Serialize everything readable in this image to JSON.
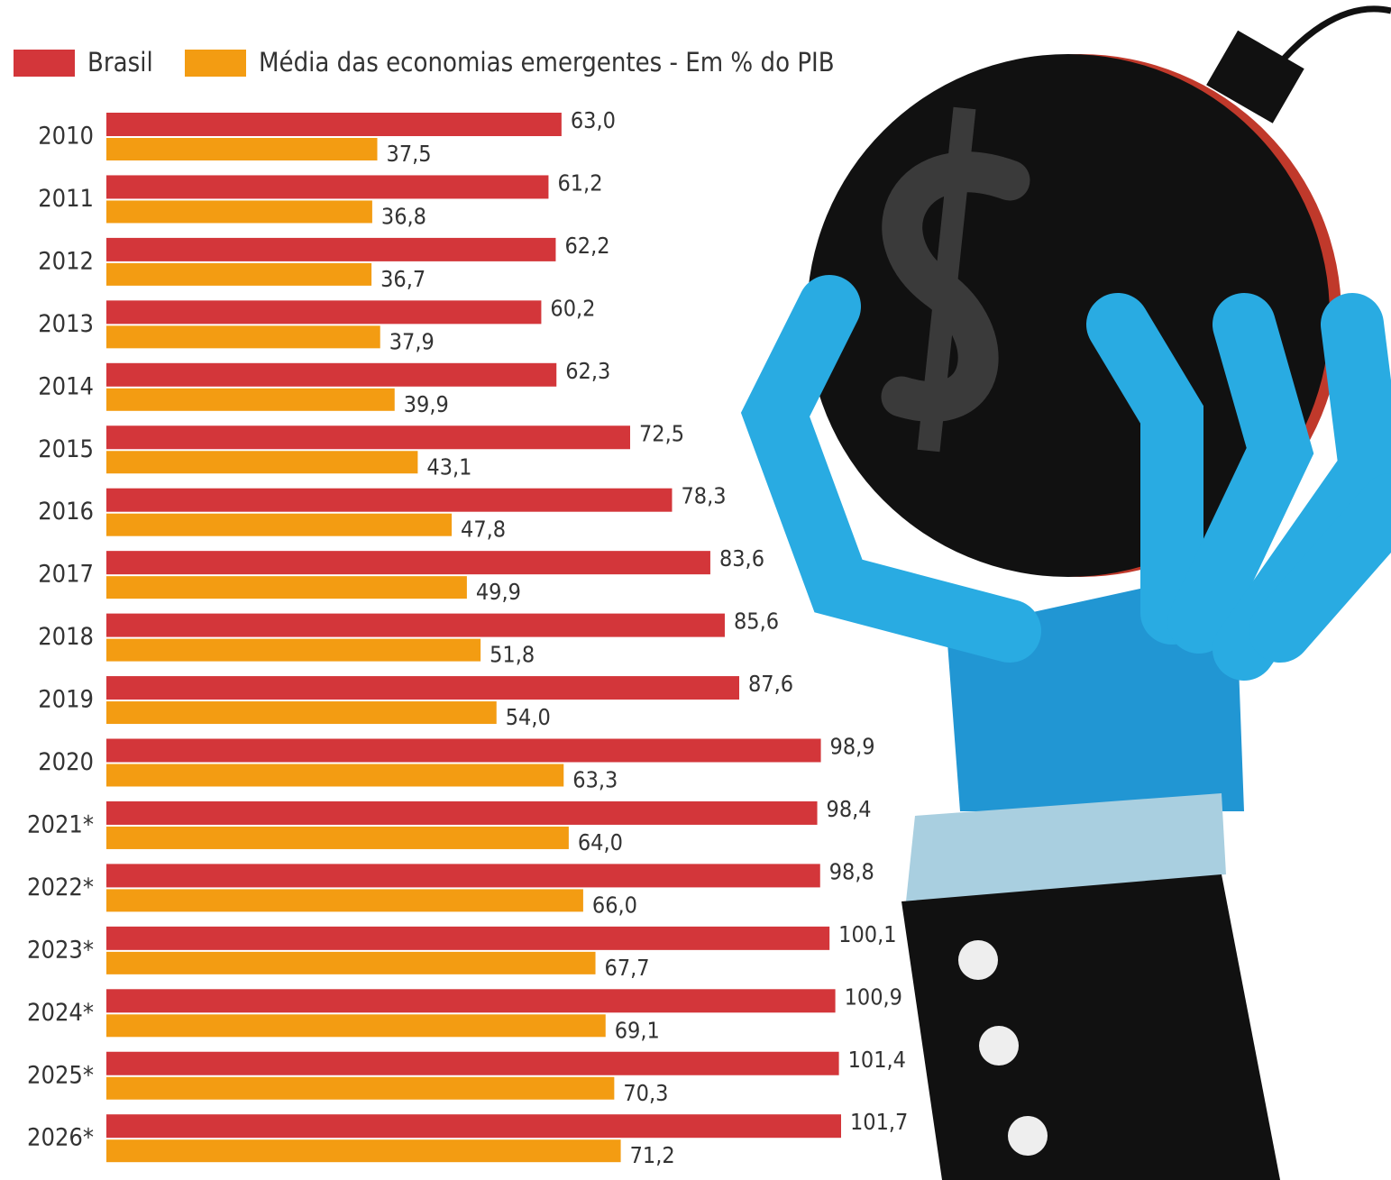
{
  "chart_data": {
    "type": "bar",
    "orientation": "horizontal",
    "categories": [
      "2010",
      "2011",
      "2012",
      "2013",
      "2014",
      "2015",
      "2016",
      "2017",
      "2018",
      "2019",
      "2020",
      "2021*",
      "2022*",
      "2023*",
      "2024*",
      "2025*",
      "2026*"
    ],
    "series": [
      {
        "name": "Brasil",
        "color": "#d3363a",
        "values": [
          63.0,
          61.2,
          62.2,
          60.2,
          62.3,
          72.5,
          78.3,
          83.6,
          85.6,
          87.6,
          98.9,
          98.4,
          98.8,
          100.1,
          100.9,
          101.4,
          101.7
        ],
        "value_labels": [
          "63,0",
          "61,2",
          "62,2",
          "60,2",
          "62,3",
          "72,5",
          "78,3",
          "83,6",
          "85,6",
          "87,6",
          "98,9",
          "98,4",
          "98,8",
          "100,1",
          "100,9",
          "101,4",
          "101,7"
        ]
      },
      {
        "name": "Média das economias emergentes - Em % do PIB",
        "color": "#f39c12",
        "values": [
          37.5,
          36.8,
          36.7,
          37.9,
          39.9,
          43.1,
          47.8,
          49.9,
          51.8,
          54.0,
          63.3,
          64.0,
          66.0,
          67.7,
          69.1,
          70.3,
          71.2
        ],
        "value_labels": [
          "37,5",
          "36,8",
          "36,7",
          "37,9",
          "39,9",
          "43,1",
          "47,8",
          "49,9",
          "51,8",
          "54,0",
          "63,3",
          "64,0",
          "66,0",
          "67,7",
          "69,1",
          "70,3",
          "71,2"
        ]
      }
    ]
  }
}
